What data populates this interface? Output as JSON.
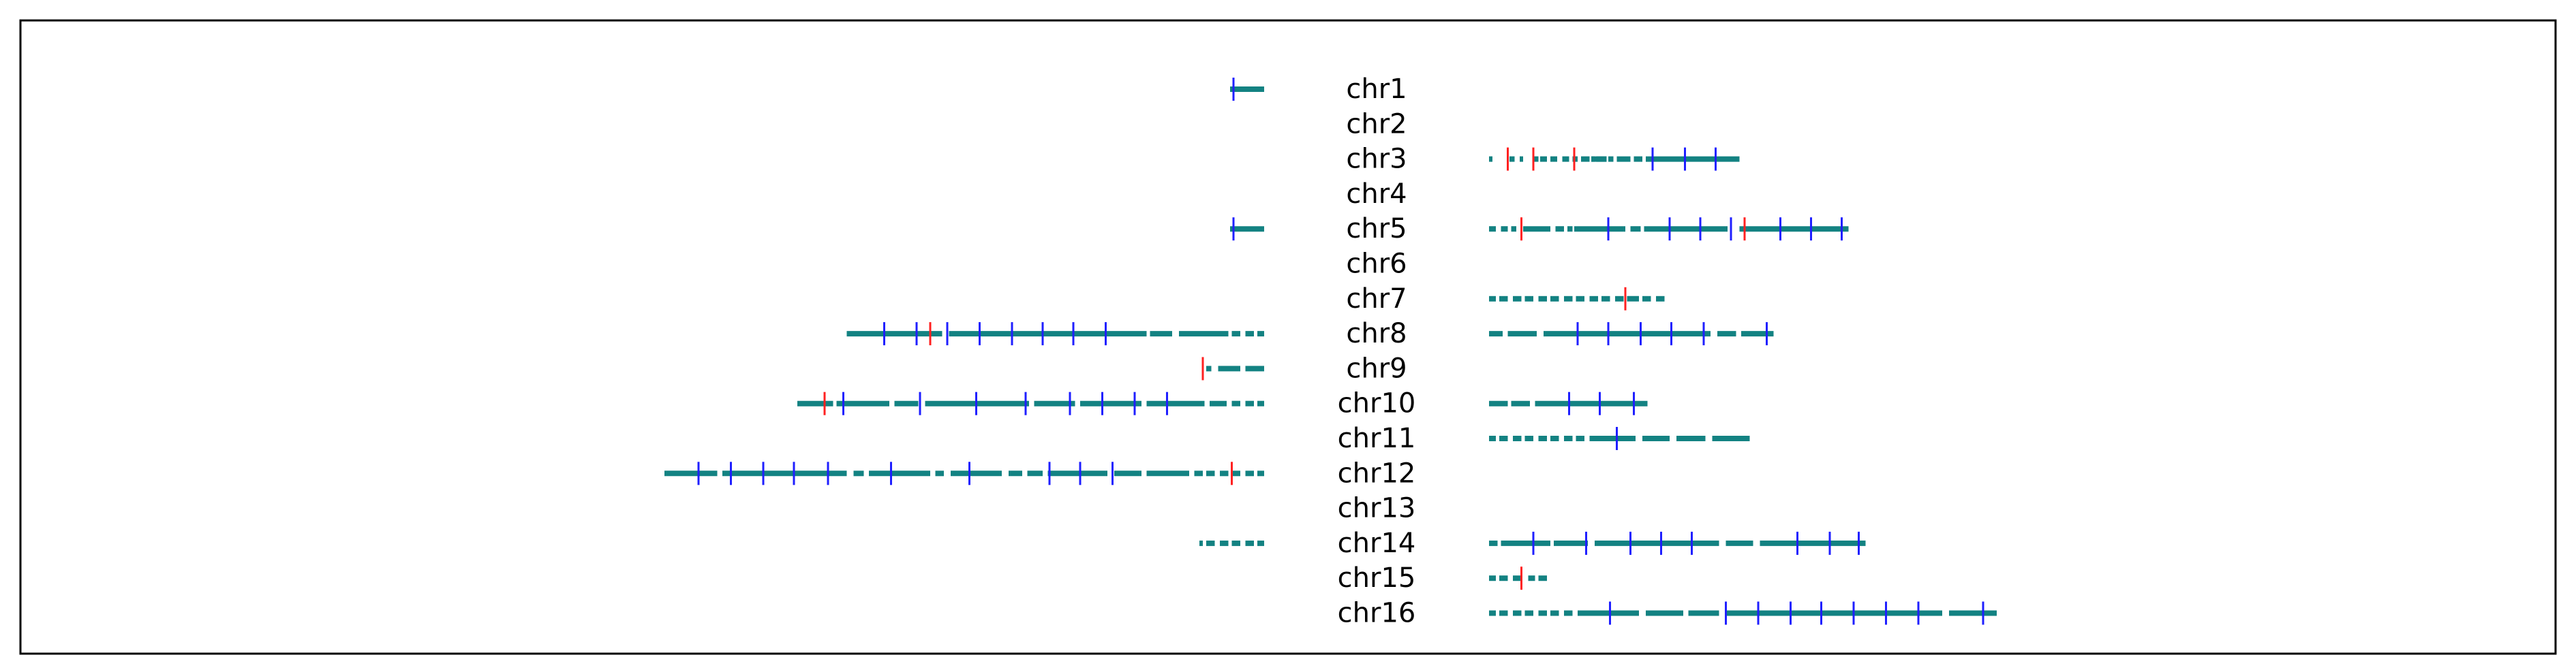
{
  "chart_data": {
    "type": "scatter",
    "title": "",
    "xlabel": "",
    "ylabel": "",
    "grid": false,
    "legend": "none",
    "x_ticks": [],
    "y_ticks": [],
    "center_marker_position": 16.4,
    "xlim": [
      0,
      36.1
    ],
    "colors": {
      "segment": "#138282",
      "tick_blue": "#1f1fff",
      "tick_red": "#ff2020",
      "label": "#000000",
      "frame": "#000000"
    },
    "chromosomes": [
      {
        "name": "chr1",
        "left": {
          "segments": [
            [
              0.0,
              1.0
            ]
          ],
          "blue": [
            0.9
          ],
          "red": []
        },
        "right": {
          "segments": [],
          "blue": [],
          "red": []
        }
      },
      {
        "name": "chr2",
        "left": {
          "segments": [],
          "blue": [],
          "red": []
        },
        "right": {
          "segments": [],
          "blue": [],
          "red": []
        }
      },
      {
        "name": "chr3",
        "left": {
          "segments": [],
          "blue": [],
          "red": []
        },
        "right": {
          "segments": [
            [
              0.0,
              0.1
            ],
            [
              0.6,
              0.75
            ],
            [
              0.9,
              1.0
            ],
            [
              1.3,
              1.45
            ],
            [
              1.5,
              1.7
            ],
            [
              1.8,
              2.0
            ],
            [
              2.15,
              2.35
            ],
            [
              2.45,
              2.6
            ],
            [
              2.7,
              2.95
            ],
            [
              3.0,
              3.45
            ],
            [
              3.0,
              3.1
            ],
            [
              3.15,
              3.45
            ],
            [
              3.5,
              3.65
            ],
            [
              3.75,
              4.15
            ],
            [
              4.25,
              4.5
            ],
            [
              4.6,
              7.35
            ]
          ],
          "blue": [
            4.8,
            5.75,
            6.65
          ],
          "red": [
            0.55,
            1.3,
            2.5
          ]
        }
      },
      {
        "name": "chr4",
        "left": {
          "segments": [],
          "blue": [],
          "red": []
        },
        "right": {
          "segments": [],
          "blue": [],
          "red": []
        }
      },
      {
        "name": "chr5",
        "left": {
          "segments": [
            [
              0.0,
              1.0
            ]
          ],
          "blue": [
            0.9
          ],
          "red": []
        },
        "right": {
          "segments": [
            [
              0.0,
              0.2
            ],
            [
              0.35,
              0.55
            ],
            [
              0.65,
              0.8
            ],
            [
              1.0,
              1.8
            ],
            [
              1.95,
              2.2
            ],
            [
              2.3,
              2.45
            ],
            [
              2.5,
              4.0
            ],
            [
              4.15,
              4.45
            ],
            [
              4.55,
              7.0
            ],
            [
              7.35,
              10.55
            ]
          ],
          "blue": [
            3.5,
            5.3,
            6.2,
            7.1,
            8.55,
            9.45,
            10.35
          ],
          "red": [
            0.95,
            7.5
          ]
        }
      },
      {
        "name": "chr6",
        "left": {
          "segments": [],
          "blue": [],
          "red": []
        },
        "right": {
          "segments": [],
          "blue": [],
          "red": []
        }
      },
      {
        "name": "chr7",
        "left": {
          "segments": [],
          "blue": [],
          "red": []
        },
        "right": {
          "segments": [
            [
              0.0,
              0.2
            ],
            [
              0.3,
              0.55
            ],
            [
              0.7,
              0.95
            ],
            [
              1.05,
              1.3
            ],
            [
              1.45,
              1.7
            ],
            [
              1.8,
              2.05
            ],
            [
              2.2,
              2.45
            ],
            [
              2.55,
              2.8
            ],
            [
              2.95,
              3.2
            ],
            [
              3.3,
              3.55
            ],
            [
              3.7,
              3.95
            ],
            [
              4.05,
              4.4
            ],
            [
              4.5,
              4.75
            ],
            [
              4.9,
              5.15
            ]
          ],
          "blue": [],
          "red": [
            4.0
          ]
        }
      },
      {
        "name": "chr8",
        "left": {
          "segments": [
            [
              0.0,
              0.2
            ],
            [
              0.3,
              0.55
            ],
            [
              0.7,
              0.95
            ],
            [
              1.05,
              2.5
            ],
            [
              2.7,
              3.35
            ],
            [
              3.45,
              9.25
            ],
            [
              9.45,
              12.25
            ]
          ],
          "blue": [
            4.65,
            5.6,
            6.5,
            7.4,
            8.35,
            9.3,
            10.2,
            11.15
          ],
          "red": [
            9.8
          ]
        },
        "right": {
          "segments": [
            [
              0.0,
              0.4
            ],
            [
              0.55,
              1.4
            ],
            [
              1.6,
              6.5
            ],
            [
              6.7,
              7.25
            ],
            [
              7.4,
              8.35
            ]
          ],
          "blue": [
            2.6,
            3.5,
            4.45,
            5.35,
            6.3,
            8.15
          ],
          "red": []
        }
      },
      {
        "name": "chr9",
        "left": {
          "segments": [
            [
              0.0,
              0.55
            ],
            [
              0.7,
              1.35
            ],
            [
              1.55,
              1.7
            ]
          ],
          "blue": [],
          "red": [
            1.8
          ]
        },
        "right": {
          "segments": [],
          "blue": [],
          "red": []
        }
      },
      {
        "name": "chr10",
        "left": {
          "segments": [
            [
              0.0,
              0.2
            ],
            [
              0.3,
              0.55
            ],
            [
              0.7,
              0.95
            ],
            [
              1.1,
              1.6
            ],
            [
              1.75,
              3.45
            ],
            [
              3.6,
              5.4
            ],
            [
              5.55,
              6.75
            ],
            [
              6.9,
              9.95
            ],
            [
              10.15,
              10.85
            ],
            [
              11.0,
              12.55
            ],
            [
              12.65,
              13.7
            ]
          ],
          "blue": [
            2.85,
            3.8,
            4.75,
            5.7,
            7.0,
            8.45,
            10.1,
            12.35
          ],
          "red": [
            12.9
          ]
        },
        "right": {
          "segments": [
            [
              0.0,
              0.55
            ],
            [
              0.65,
              1.2
            ],
            [
              1.35,
              4.65
            ]
          ],
          "blue": [
            2.35,
            3.25,
            4.25
          ],
          "red": []
        }
      },
      {
        "name": "chr11",
        "left": {
          "segments": [],
          "blue": [],
          "red": []
        },
        "right": {
          "segments": [
            [
              0.0,
              0.2
            ],
            [
              0.3,
              0.55
            ],
            [
              0.7,
              0.95
            ],
            [
              1.05,
              1.3
            ],
            [
              1.45,
              1.7
            ],
            [
              1.8,
              2.05
            ],
            [
              2.2,
              2.45
            ],
            [
              2.55,
              2.8
            ],
            [
              2.95,
              4.3
            ],
            [
              4.5,
              5.3
            ],
            [
              5.5,
              6.35
            ],
            [
              6.55,
              7.65
            ]
          ],
          "blue": [
            3.75
          ],
          "red": []
        }
      },
      {
        "name": "chr12",
        "left": {
          "segments": [
            [
              0.0,
              0.2
            ],
            [
              0.3,
              0.55
            ],
            [
              0.7,
              0.95
            ],
            [
              1.05,
              1.3
            ],
            [
              1.45,
              1.7
            ],
            [
              1.8,
              2.05
            ],
            [
              2.2,
              3.45
            ],
            [
              3.6,
              4.4
            ],
            [
              4.6,
              6.35
            ],
            [
              6.5,
              6.95
            ],
            [
              7.1,
              7.5
            ],
            [
              7.7,
              9.2
            ],
            [
              9.4,
              9.65
            ],
            [
              9.8,
              11.6
            ],
            [
              11.75,
              12.05
            ],
            [
              12.25,
              15.9
            ],
            [
              16.05,
              17.6
            ]
          ],
          "blue": [
            4.45,
            5.4,
            6.3,
            8.65,
            10.95,
            12.8,
            13.8,
            14.7,
            15.65,
            16.6
          ],
          "red": [
            0.95
          ]
        },
        "right": {
          "segments": [],
          "blue": [],
          "red": []
        }
      },
      {
        "name": "chr13",
        "left": {
          "segments": [],
          "blue": [],
          "red": []
        },
        "right": {
          "segments": [],
          "blue": [],
          "red": []
        }
      },
      {
        "name": "chr14",
        "left": {
          "segments": [
            [
              0.0,
              0.2
            ],
            [
              0.3,
              0.55
            ],
            [
              0.7,
              0.95
            ],
            [
              1.05,
              1.3
            ],
            [
              1.45,
              1.7
            ],
            [
              1.8,
              1.9
            ]
          ],
          "blue": [],
          "red": []
        },
        "right": {
          "segments": [
            [
              0.0,
              0.25
            ],
            [
              0.35,
              1.8
            ],
            [
              1.9,
              2.9
            ],
            [
              3.1,
              6.75
            ],
            [
              6.95,
              7.75
            ],
            [
              7.95,
              11.05
            ]
          ],
          "blue": [
            1.3,
            2.85,
            4.15,
            5.05,
            5.95,
            9.05,
            10.0,
            10.85
          ],
          "red": []
        }
      },
      {
        "name": "chr15",
        "left": {
          "segments": [],
          "blue": [],
          "red": []
        },
        "right": {
          "segments": [
            [
              0.0,
              0.2
            ],
            [
              0.3,
              0.55
            ],
            [
              0.7,
              0.95
            ],
            [
              1.15,
              1.35
            ],
            [
              1.45,
              1.7
            ]
          ],
          "blue": [],
          "red": [
            0.95
          ]
        }
      },
      {
        "name": "chr16",
        "left": {
          "segments": [],
          "blue": [],
          "red": []
        },
        "right": {
          "segments": [
            [
              0.0,
              0.2
            ],
            [
              0.3,
              0.55
            ],
            [
              0.7,
              0.95
            ],
            [
              1.05,
              1.3
            ],
            [
              1.45,
              1.7
            ],
            [
              1.8,
              2.05
            ],
            [
              2.2,
              2.45
            ],
            [
              2.6,
              4.4
            ],
            [
              4.6,
              5.7
            ],
            [
              5.85,
              6.75
            ],
            [
              6.95,
              13.3
            ],
            [
              13.5,
              14.9
            ]
          ],
          "blue": [
            3.55,
            6.95,
            7.9,
            8.85,
            9.75,
            10.7,
            11.65,
            12.6,
            14.5
          ],
          "red": []
        }
      }
    ]
  }
}
